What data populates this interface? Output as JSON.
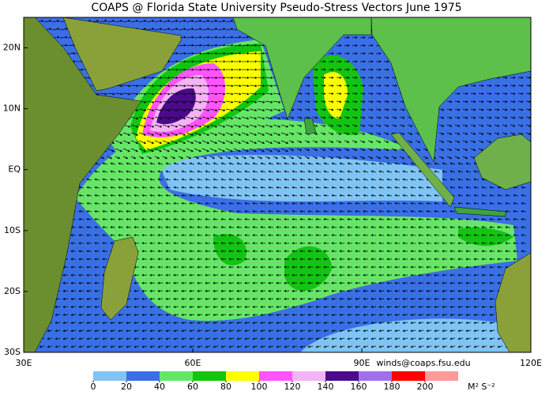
{
  "title": "COAPS @ Florida State University Pseudo-Stress Vectors  June 1975",
  "map": {
    "lonlim": [
      30,
      120
    ],
    "latlim": [
      -30,
      25
    ],
    "lon_ticks": [
      {
        "value": 30,
        "label": "30E"
      },
      {
        "value": 60,
        "label": "60E"
      },
      {
        "value": 90,
        "label": "90E"
      },
      {
        "value": 120,
        "label": "120E"
      }
    ],
    "lat_ticks": [
      {
        "value": 20,
        "label": "20N"
      },
      {
        "value": 10,
        "label": "10N"
      },
      {
        "value": 0,
        "label": "EQ"
      },
      {
        "value": -10,
        "label": "10S"
      },
      {
        "value": -20,
        "label": "20S"
      },
      {
        "value": -30,
        "label": "30S"
      }
    ]
  },
  "colorbar": {
    "ticks": [
      0,
      20,
      40,
      60,
      80,
      100,
      120,
      140,
      160,
      180,
      200
    ],
    "colors": [
      "#7fc4f4",
      "#3a70e6",
      "#66e666",
      "#11c511",
      "#ffff00",
      "#ff55ff",
      "#f4b3f4",
      "#4b0a8a",
      "#a070e8",
      "#ff0000",
      "#ff9a9a"
    ],
    "units": "M² S⁻²"
  },
  "contact": "winds@coaps.fsu.edu"
}
